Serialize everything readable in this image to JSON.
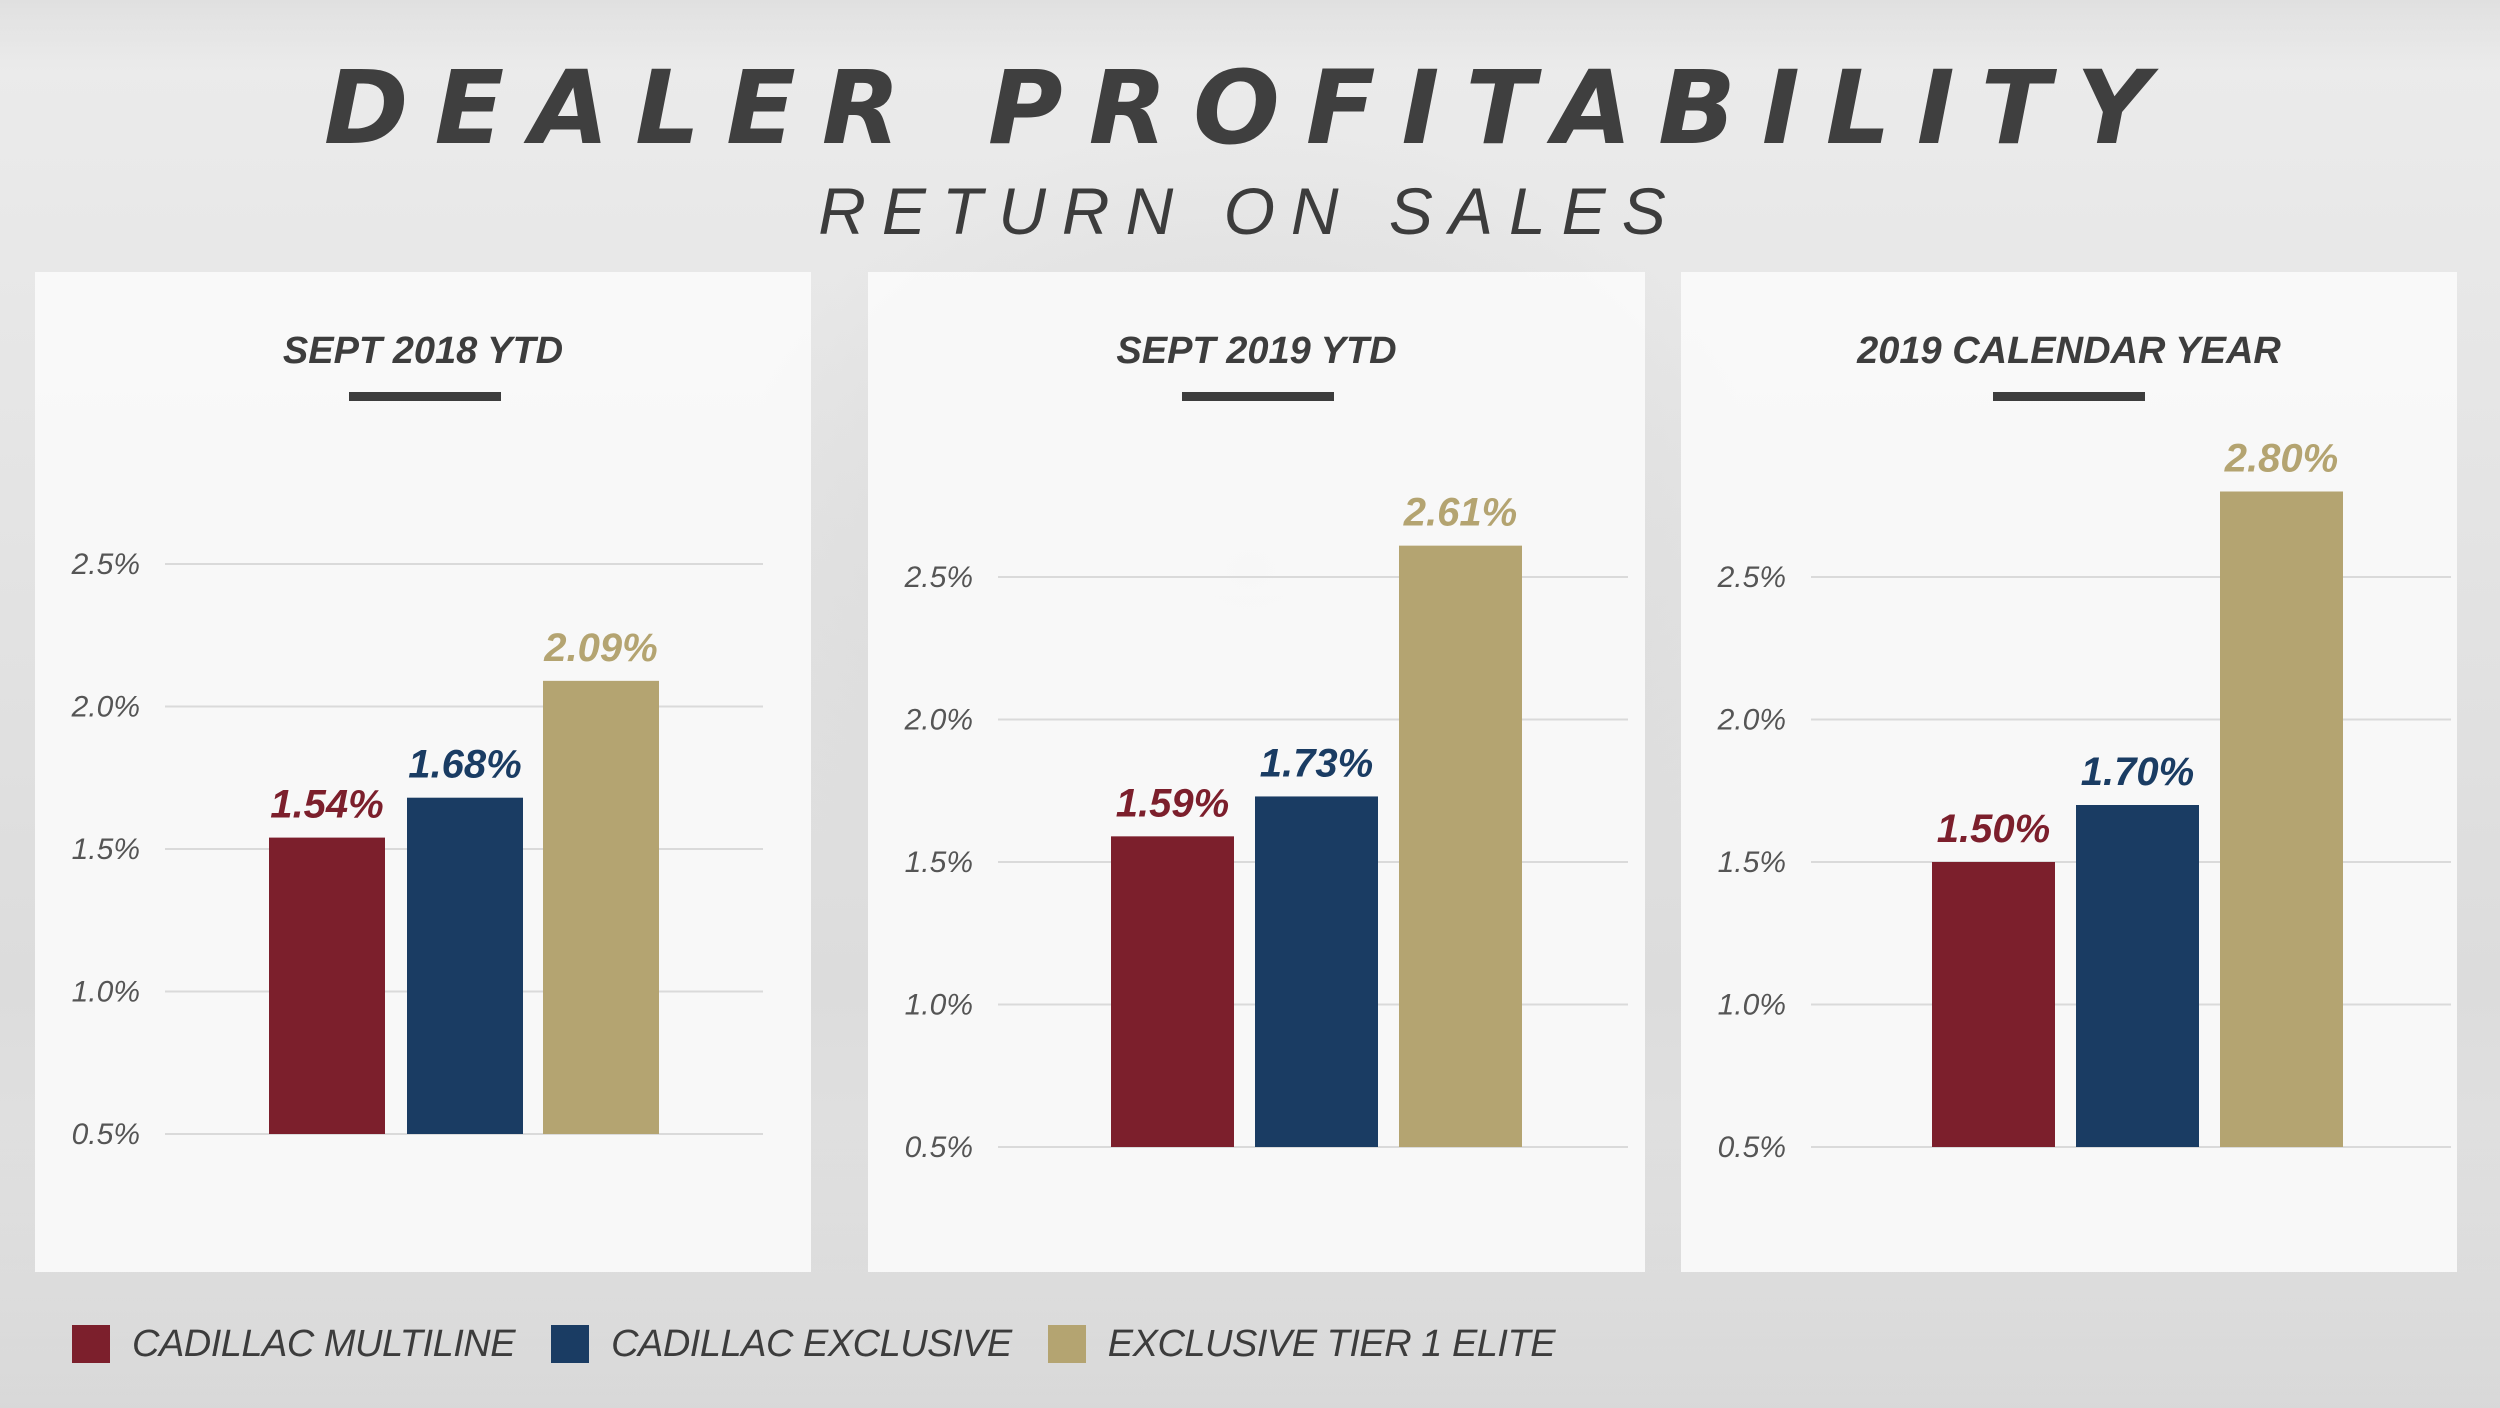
{
  "title": "DEALER PROFITABILITY",
  "subtitle": "RETURN ON SALES",
  "colors": {
    "multiline": "#7c1f2c",
    "exclusive": "#1a3c63",
    "elite": "#b4a471",
    "text": "#3d3d3d"
  },
  "chart_data": [
    {
      "type": "bar",
      "title": "SEPT 2018 YTD",
      "categories": [
        "CADILLAC MULTILINE",
        "CADILLAC EXCLUSIVE",
        "EXCLUSIVE TIER 1 ELITE"
      ],
      "values": [
        1.54,
        1.68,
        2.09
      ],
      "value_labels": [
        "1.54%",
        "1.68%",
        "2.09%"
      ],
      "yticks": [
        "0.5%",
        "1.0%",
        "1.5%",
        "2.0%",
        "2.5%"
      ],
      "ylim": [
        0.5,
        2.5
      ],
      "grid": true
    },
    {
      "type": "bar",
      "title": "SEPT 2019 YTD",
      "categories": [
        "CADILLAC MULTILINE",
        "CADILLAC EXCLUSIVE",
        "EXCLUSIVE TIER 1 ELITE"
      ],
      "values": [
        1.59,
        1.73,
        2.61
      ],
      "value_labels": [
        "1.59%",
        "1.73%",
        "2.61%"
      ],
      "yticks": [
        "0.5%",
        "1.0%",
        "1.5%",
        "2.0%",
        "2.5%"
      ],
      "ylim": [
        0.5,
        2.5
      ],
      "grid": true
    },
    {
      "type": "bar",
      "title": "2019 CALENDAR YEAR",
      "categories": [
        "CADILLAC MULTILINE",
        "CADILLAC EXCLUSIVE",
        "EXCLUSIVE TIER 1 ELITE"
      ],
      "values": [
        1.5,
        1.7,
        2.8
      ],
      "value_labels": [
        "1.50%",
        "1.70%",
        "2.80%"
      ],
      "yticks": [
        "0.5%",
        "1.0%",
        "1.5%",
        "2.0%",
        "2.5%"
      ],
      "ylim": [
        0.5,
        2.5
      ],
      "grid": true
    }
  ],
  "legend": {
    "placement": "bottom-left",
    "items": [
      {
        "label": "CADILLAC MULTILINE",
        "color": "#7c1f2c"
      },
      {
        "label": "CADILLAC EXCLUSIVE",
        "color": "#1a3c63"
      },
      {
        "label": "EXCLUSIVE TIER 1 ELITE",
        "color": "#b4a471"
      }
    ]
  }
}
